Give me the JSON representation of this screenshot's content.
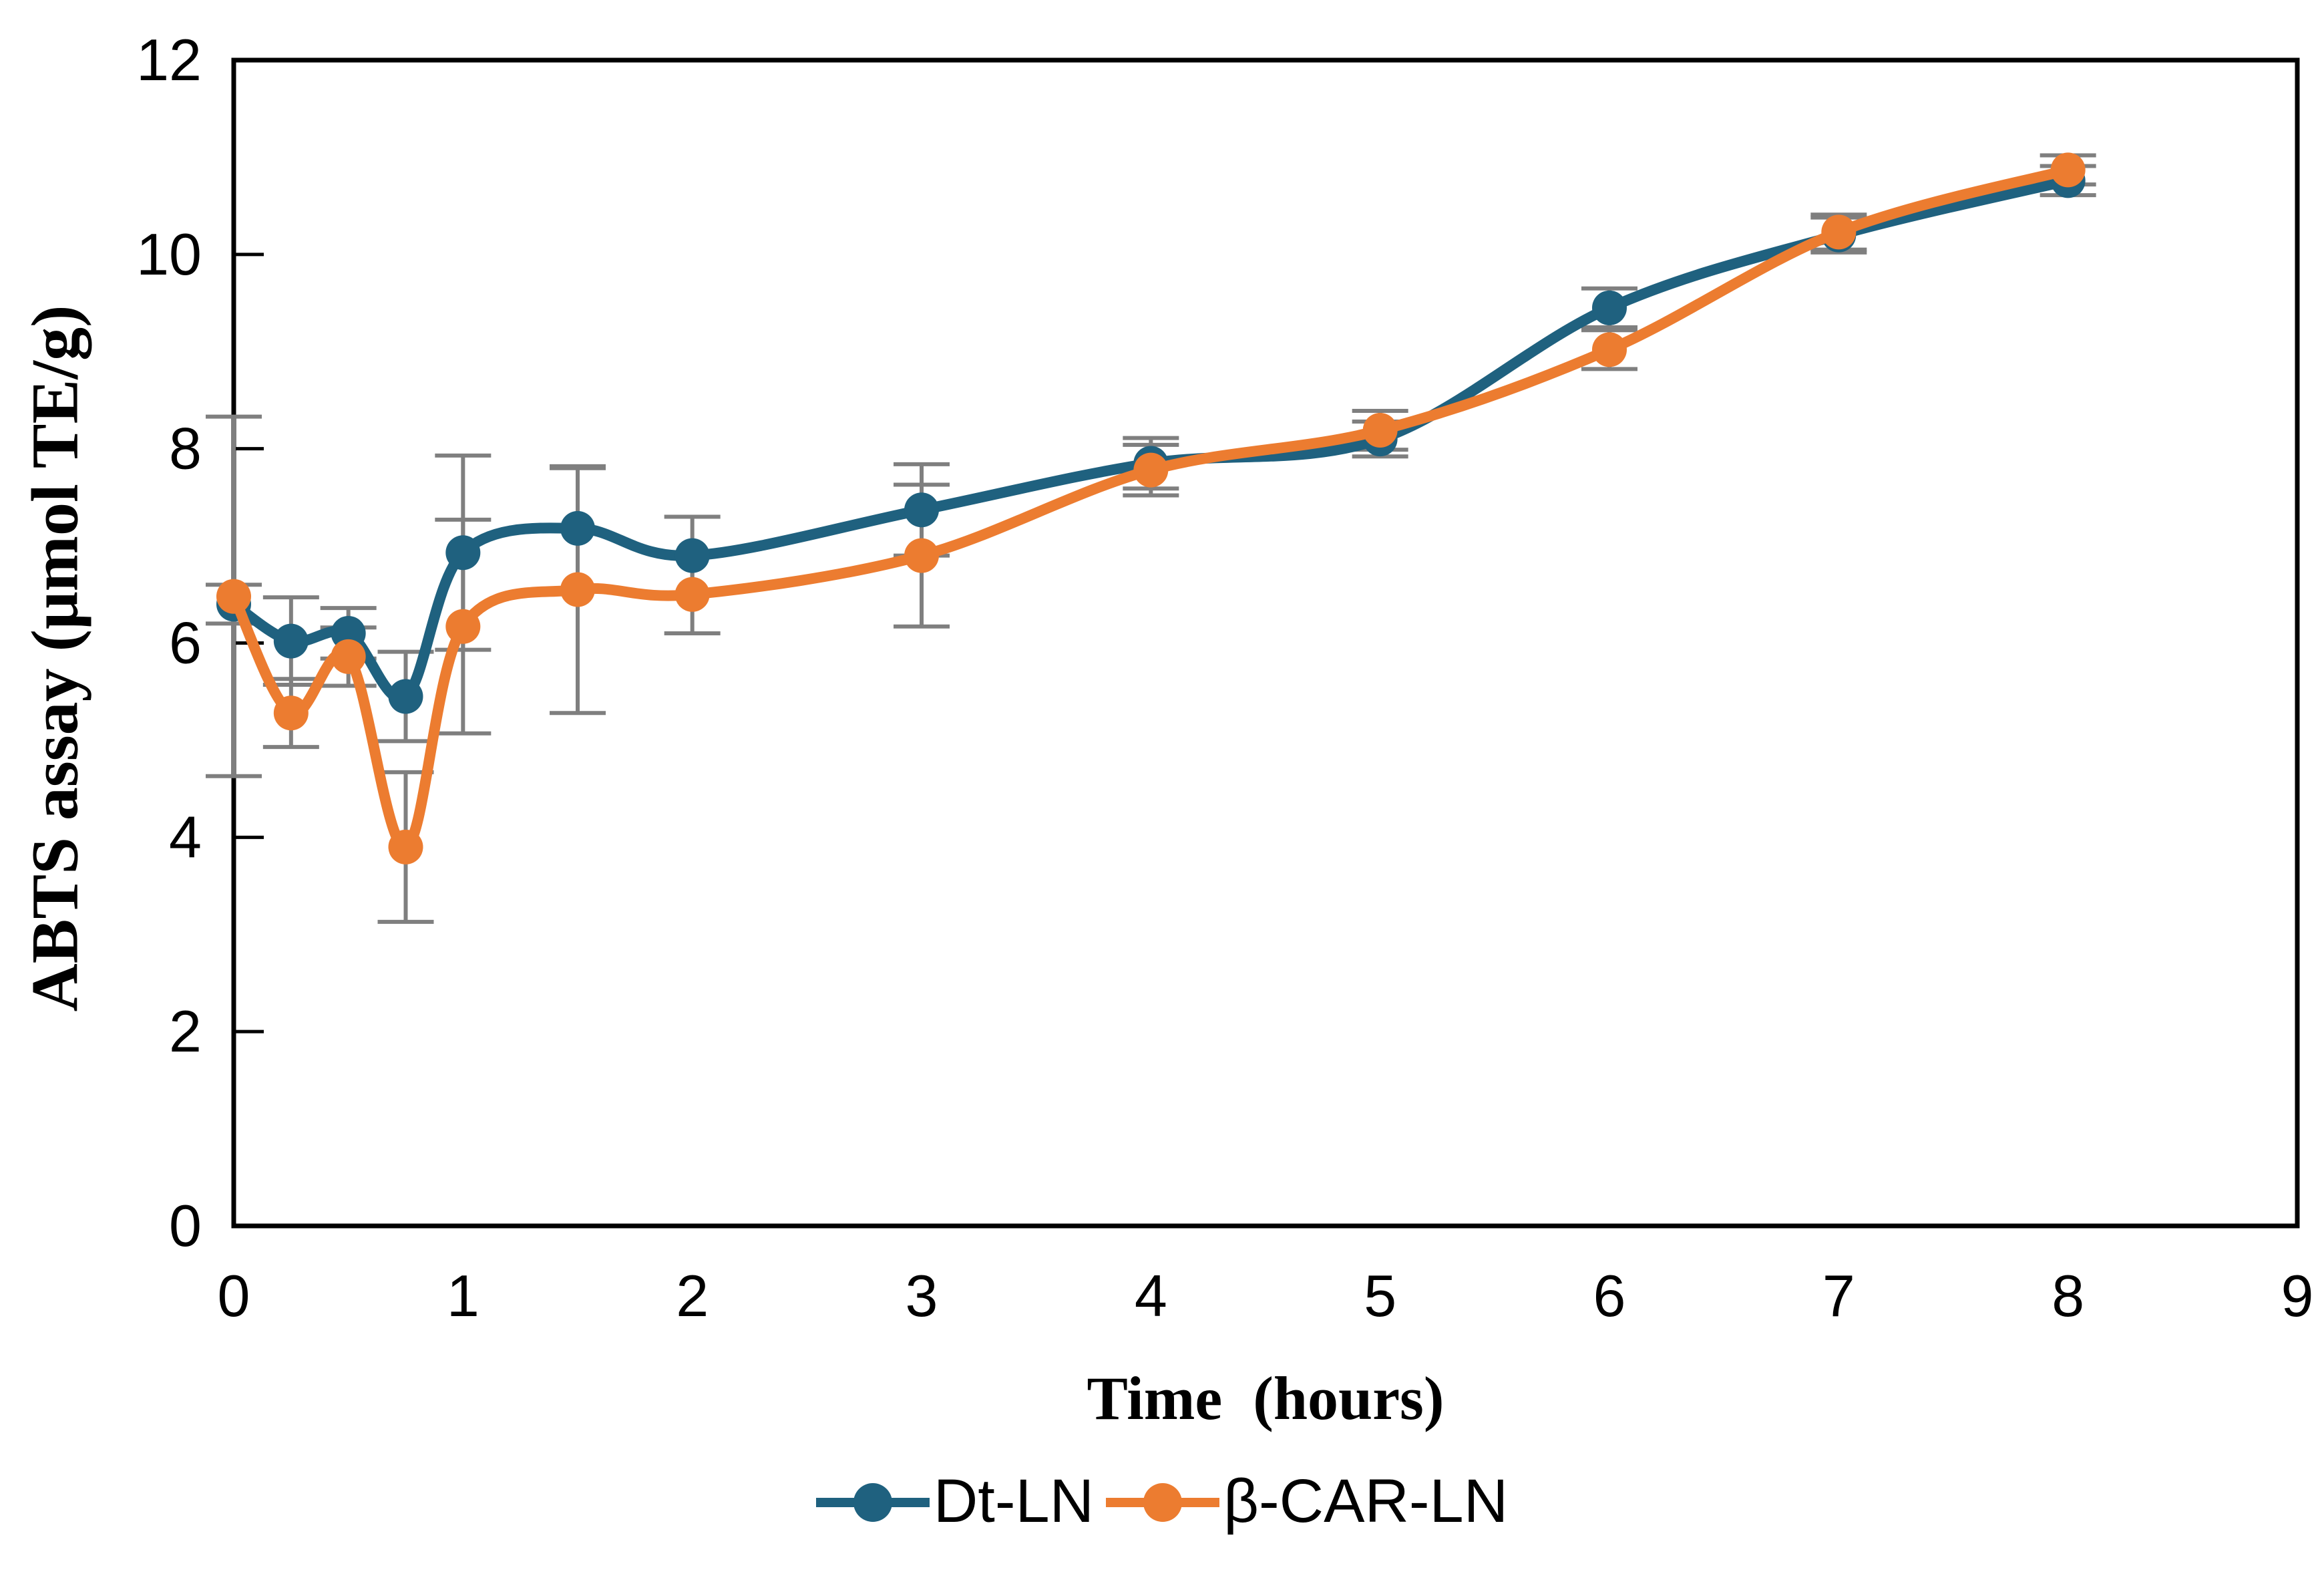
{
  "labels": {
    "y_title": "ABTS assay (μmol TE/g)",
    "x_title": "Time  (hours)"
  },
  "legend": {
    "items": [
      {
        "label": "Dt-LN",
        "color": "#1F617F"
      },
      {
        "label": "β-CAR-LN",
        "color": "#EC7C30"
      }
    ]
  },
  "chart_data": {
    "type": "line",
    "title": "",
    "xlabel": "Time  (hours)",
    "ylabel": "ABTS assay (μmol TE/g)",
    "xlim": [
      0,
      9
    ],
    "ylim": [
      0,
      12
    ],
    "xticks": [
      0,
      1,
      2,
      3,
      4,
      5,
      6,
      7,
      8,
      9
    ],
    "yticks": [
      0,
      2,
      4,
      6,
      8,
      10,
      12
    ],
    "grid": false,
    "legend_position": "bottom",
    "error_bar_color": "#7F7F7F",
    "x": [
      0,
      0.25,
      0.5,
      0.75,
      1,
      1.5,
      2,
      3,
      4,
      5,
      6,
      7,
      8
    ],
    "series": [
      {
        "name": "Dt-LN",
        "color": "#1F617F",
        "values": [
          6.4,
          6.02,
          6.1,
          5.45,
          6.93,
          7.18,
          6.9,
          7.37,
          7.85,
          8.1,
          9.45,
          10.2,
          10.76
        ],
        "errors": [
          0.2,
          0.45,
          0.26,
          0.46,
          1.0,
          0.62,
          0.4,
          0.47,
          0.26,
          0.18,
          0.2,
          0.18,
          0.15
        ]
      },
      {
        "name": "β-CAR-LN",
        "color": "#EC7C30",
        "values": [
          6.48,
          5.28,
          5.86,
          3.9,
          6.17,
          6.55,
          6.5,
          6.9,
          7.78,
          8.19,
          9.02,
          10.23,
          10.87
        ],
        "errors": [
          1.85,
          0.35,
          0.3,
          0.77,
          1.1,
          1.27,
          0.4,
          0.73,
          0.26,
          0.2,
          0.2,
          0.18,
          0.15
        ]
      }
    ]
  }
}
